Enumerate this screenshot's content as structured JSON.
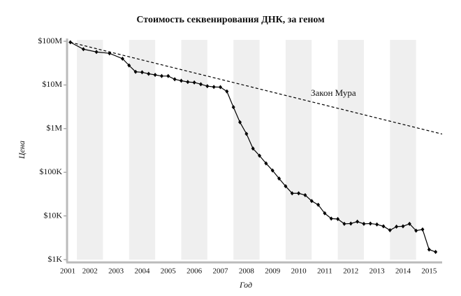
{
  "chart_data": {
    "type": "line",
    "title": "Стоимость секвенирования ДНК, за геном",
    "x_label": "Год",
    "y_label": "Цена",
    "log_y": true,
    "xlim": [
      2001.65,
      2016
    ],
    "ylim": [
      1000,
      100000000
    ],
    "xticks": [
      {
        "value": 2001.65,
        "label": "2001"
      },
      {
        "value": 2002.5,
        "label": "2002"
      },
      {
        "value": 2003.5,
        "label": "2003"
      },
      {
        "value": 2004.5,
        "label": "2004"
      },
      {
        "value": 2005.5,
        "label": "2005"
      },
      {
        "value": 2006.5,
        "label": "2006"
      },
      {
        "value": 2007.5,
        "label": "2007"
      },
      {
        "value": 2008.5,
        "label": "2008"
      },
      {
        "value": 2009.5,
        "label": "2009"
      },
      {
        "value": 2010.5,
        "label": "2010"
      },
      {
        "value": 2011.5,
        "label": "2011"
      },
      {
        "value": 2012.5,
        "label": "2012"
      },
      {
        "value": 2013.5,
        "label": "2013"
      },
      {
        "value": 2014.5,
        "label": "2014"
      },
      {
        "value": 2015.5,
        "label": "2015"
      }
    ],
    "yticks": [
      {
        "value": 1000,
        "label": "$1K"
      },
      {
        "value": 10000,
        "label": "$10K"
      },
      {
        "value": 100000,
        "label": "$100K"
      },
      {
        "value": 1000000,
        "label": "$1M"
      },
      {
        "value": 10000000,
        "label": "$10M"
      },
      {
        "value": 100000000,
        "label": "$100M"
      }
    ],
    "series": [
      {
        "name": "Стоимость",
        "color": "#000000",
        "x": [
          2001.75,
          2002.25,
          2002.75,
          2003.25,
          2003.75,
          2004.0,
          2004.25,
          2004.5,
          2004.75,
          2005.0,
          2005.25,
          2005.5,
          2005.75,
          2006.0,
          2006.25,
          2006.5,
          2006.75,
          2007.0,
          2007.25,
          2007.5,
          2007.75,
          2008.0,
          2008.25,
          2008.5,
          2008.75,
          2009.0,
          2009.25,
          2009.5,
          2009.75,
          2010.0,
          2010.25,
          2010.5,
          2010.75,
          2011.0,
          2011.25,
          2011.5,
          2011.75,
          2012.0,
          2012.25,
          2012.5,
          2012.75,
          2013.0,
          2013.25,
          2013.5,
          2013.75,
          2014.0,
          2014.25,
          2014.5,
          2014.75,
          2015.0,
          2015.25,
          2015.5,
          2015.75
        ],
        "values": [
          95000000,
          66000000,
          57000000,
          53000000,
          40000000,
          28000000,
          20000000,
          19500000,
          18000000,
          17000000,
          16000000,
          16000000,
          13500000,
          12500000,
          11700000,
          11400000,
          10400000,
          9400000,
          9000000,
          8900000,
          7100000,
          3100000,
          1400000,
          760000,
          350000,
          240000,
          160000,
          110000,
          72000,
          48000,
          33000,
          33000,
          30000,
          22000,
          18000,
          11500,
          8700,
          8500,
          6600,
          6700,
          7400,
          6600,
          6700,
          6400,
          5800,
          4700,
          5700,
          5800,
          6600,
          4600,
          4900,
          1700,
          1500
        ]
      },
      {
        "name": "Закон Мура",
        "color": "#000000",
        "dashed": true,
        "x": [
          2001.75,
          2016
        ],
        "values": [
          95000000,
          750000
        ]
      }
    ]
  }
}
